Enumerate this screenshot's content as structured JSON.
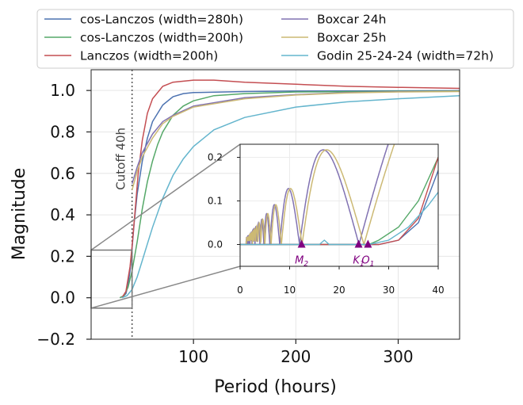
{
  "chart_data": {
    "type": "line",
    "xlabel": "Period (hours)",
    "ylabel": "Magnitude",
    "xlim": [
      0,
      360
    ],
    "ylim": [
      -0.2,
      1.1
    ],
    "xticks": [
      100,
      200,
      300
    ],
    "xtick_labels": [
      "100",
      "200",
      "300"
    ],
    "yticks": [
      -0.2,
      0.0,
      0.2,
      0.4,
      0.6,
      0.8,
      1.0
    ],
    "ytick_labels": [
      "−0.2",
      "0.0",
      "0.2",
      "0.4",
      "0.6",
      "0.8",
      "1.0"
    ],
    "grid": true,
    "legend_position": "top",
    "legend_columns": 2,
    "cutoff": {
      "x": 40,
      "label": "Cutoff 40h"
    },
    "series": [
      {
        "name": "cos-Lanczos (width=280h)",
        "color": "#4c72b0",
        "points": [
          [
            30,
            0.0
          ],
          [
            34,
            0.02
          ],
          [
            36,
            0.06
          ],
          [
            38,
            0.13
          ],
          [
            40,
            0.24
          ],
          [
            42,
            0.36
          ],
          [
            45,
            0.5
          ],
          [
            50,
            0.66
          ],
          [
            55,
            0.77
          ],
          [
            60,
            0.85
          ],
          [
            70,
            0.93
          ],
          [
            80,
            0.97
          ],
          [
            90,
            0.985
          ],
          [
            100,
            0.99
          ],
          [
            150,
            0.995
          ],
          [
            200,
            0.997
          ],
          [
            360,
            0.999
          ]
        ]
      },
      {
        "name": "cos-Lanczos (width=200h)",
        "color": "#55a868",
        "points": [
          [
            28,
            0.0
          ],
          [
            32,
            0.01
          ],
          [
            36,
            0.05
          ],
          [
            40,
            0.13
          ],
          [
            45,
            0.27
          ],
          [
            50,
            0.43
          ],
          [
            55,
            0.56
          ],
          [
            60,
            0.66
          ],
          [
            65,
            0.74
          ],
          [
            70,
            0.8
          ],
          [
            80,
            0.88
          ],
          [
            90,
            0.925
          ],
          [
            100,
            0.95
          ],
          [
            120,
            0.975
          ],
          [
            150,
            0.985
          ],
          [
            200,
            0.993
          ],
          [
            360,
            0.998
          ]
        ]
      },
      {
        "name": "Lanczos (width=200h)",
        "color": "#c44e52",
        "points": [
          [
            30,
            0.0
          ],
          [
            34,
            0.03
          ],
          [
            38,
            0.15
          ],
          [
            40,
            0.25
          ],
          [
            43,
            0.42
          ],
          [
            46,
            0.6
          ],
          [
            50,
            0.76
          ],
          [
            55,
            0.89
          ],
          [
            60,
            0.96
          ],
          [
            70,
            1.02
          ],
          [
            80,
            1.04
          ],
          [
            100,
            1.05
          ],
          [
            120,
            1.05
          ],
          [
            150,
            1.04
          ],
          [
            200,
            1.03
          ],
          [
            250,
            1.02
          ],
          [
            300,
            1.015
          ],
          [
            360,
            1.01
          ]
        ]
      },
      {
        "name": "Boxcar 24h",
        "color": "#8172b2",
        "points": [
          [
            40,
            0.55
          ],
          [
            45,
            0.63
          ],
          [
            50,
            0.7
          ],
          [
            60,
            0.79
          ],
          [
            70,
            0.85
          ],
          [
            80,
            0.88
          ],
          [
            100,
            0.925
          ],
          [
            150,
            0.965
          ],
          [
            200,
            0.98
          ],
          [
            250,
            0.99
          ],
          [
            300,
            0.994
          ],
          [
            360,
            0.996
          ]
        ]
      },
      {
        "name": "Boxcar 25h",
        "color": "#ccb974",
        "points": [
          [
            40,
            0.52
          ],
          [
            45,
            0.61
          ],
          [
            50,
            0.68
          ],
          [
            60,
            0.77
          ],
          [
            70,
            0.84
          ],
          [
            80,
            0.875
          ],
          [
            100,
            0.92
          ],
          [
            150,
            0.96
          ],
          [
            200,
            0.978
          ],
          [
            250,
            0.988
          ],
          [
            300,
            0.993
          ],
          [
            360,
            0.995
          ]
        ]
      },
      {
        "name": "Godin 25-24-24 (width=72h)",
        "color": "#64b5cd",
        "points": [
          [
            30,
            0.0
          ],
          [
            35,
            0.01
          ],
          [
            40,
            0.04
          ],
          [
            45,
            0.1
          ],
          [
            50,
            0.18
          ],
          [
            55,
            0.26
          ],
          [
            60,
            0.34
          ],
          [
            70,
            0.48
          ],
          [
            80,
            0.59
          ],
          [
            90,
            0.67
          ],
          [
            100,
            0.73
          ],
          [
            120,
            0.81
          ],
          [
            150,
            0.87
          ],
          [
            200,
            0.92
          ],
          [
            250,
            0.945
          ],
          [
            300,
            0.96
          ],
          [
            360,
            0.975
          ]
        ]
      }
    ],
    "inset": {
      "xlim": [
        0,
        40
      ],
      "ylim": [
        -0.05,
        0.23
      ],
      "xticks": [
        0,
        10,
        20,
        30,
        40
      ],
      "xtick_labels": [
        "0",
        "10",
        "20",
        "30",
        "40"
      ],
      "yticks": [
        0.0,
        0.1,
        0.2
      ],
      "ytick_labels": [
        "0.0",
        "0.1",
        "0.2"
      ],
      "zoom_box": {
        "xlim": [
          0,
          40
        ],
        "ylim": [
          -0.05,
          0.23
        ]
      },
      "tidal_markers": [
        {
          "label": "M",
          "sub": "2",
          "x": 12.42
        },
        {
          "label": "K",
          "sub": "1",
          "x": 23.93
        },
        {
          "label": "O",
          "sub": "1",
          "x": 25.82
        }
      ],
      "marker_color": "#800080"
    }
  }
}
